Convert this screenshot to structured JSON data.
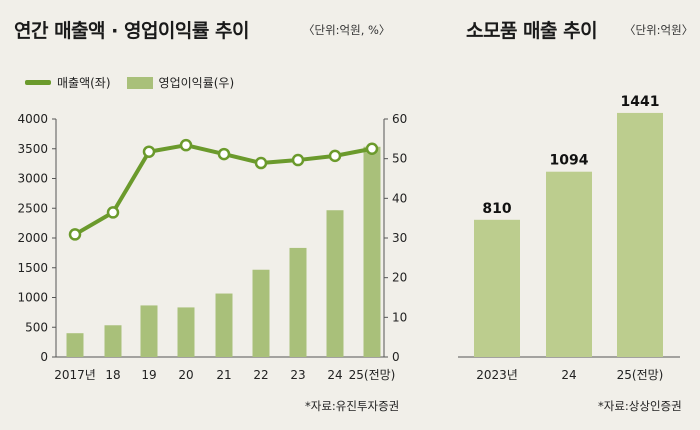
{
  "chart_data": [
    {
      "type": "bar+line",
      "title": "연간 매출액 · 영업이익률 추이",
      "unit": "〈단위:억원, %〉",
      "categories": [
        "2017년",
        "18",
        "19",
        "20",
        "21",
        "22",
        "23",
        "24",
        "25(전망)"
      ],
      "series": [
        {
          "name": "매출액(좌)",
          "type": "line",
          "axis": "left",
          "values": [
            2060,
            2430,
            3450,
            3560,
            3410,
            3260,
            3310,
            3380,
            3500
          ]
        },
        {
          "name": "영업이익률(우)",
          "type": "bar",
          "axis": "right",
          "values": [
            6.0,
            8.0,
            13.0,
            12.5,
            16.0,
            22.0,
            27.5,
            37.0,
            53.0
          ]
        }
      ],
      "y_left": {
        "min": 0,
        "max": 4000,
        "ticks": [
          "0",
          "500",
          "1000",
          "1500",
          "2000",
          "2500",
          "3000",
          "3500",
          "4000"
        ]
      },
      "y_right": {
        "min": 0,
        "max": 60,
        "ticks": [
          "0",
          "10",
          "20",
          "30",
          "40",
          "50",
          "60"
        ]
      },
      "source": "*자료:유진투자증권",
      "colors": {
        "line": "#6b9a2c",
        "bar": "#a9c07a"
      }
    },
    {
      "type": "bar",
      "title": "소모품 매출 추이",
      "unit": "〈단위:억원〉",
      "categories": [
        "2023년",
        "24",
        "25(전망)"
      ],
      "values": [
        810,
        1094,
        1441
      ],
      "value_labels": [
        "810",
        "1094",
        "1441"
      ],
      "ylim": [
        0,
        1600
      ],
      "source": "*자료:상상인증권",
      "colors": {
        "bar": "#bccd8e"
      }
    }
  ]
}
